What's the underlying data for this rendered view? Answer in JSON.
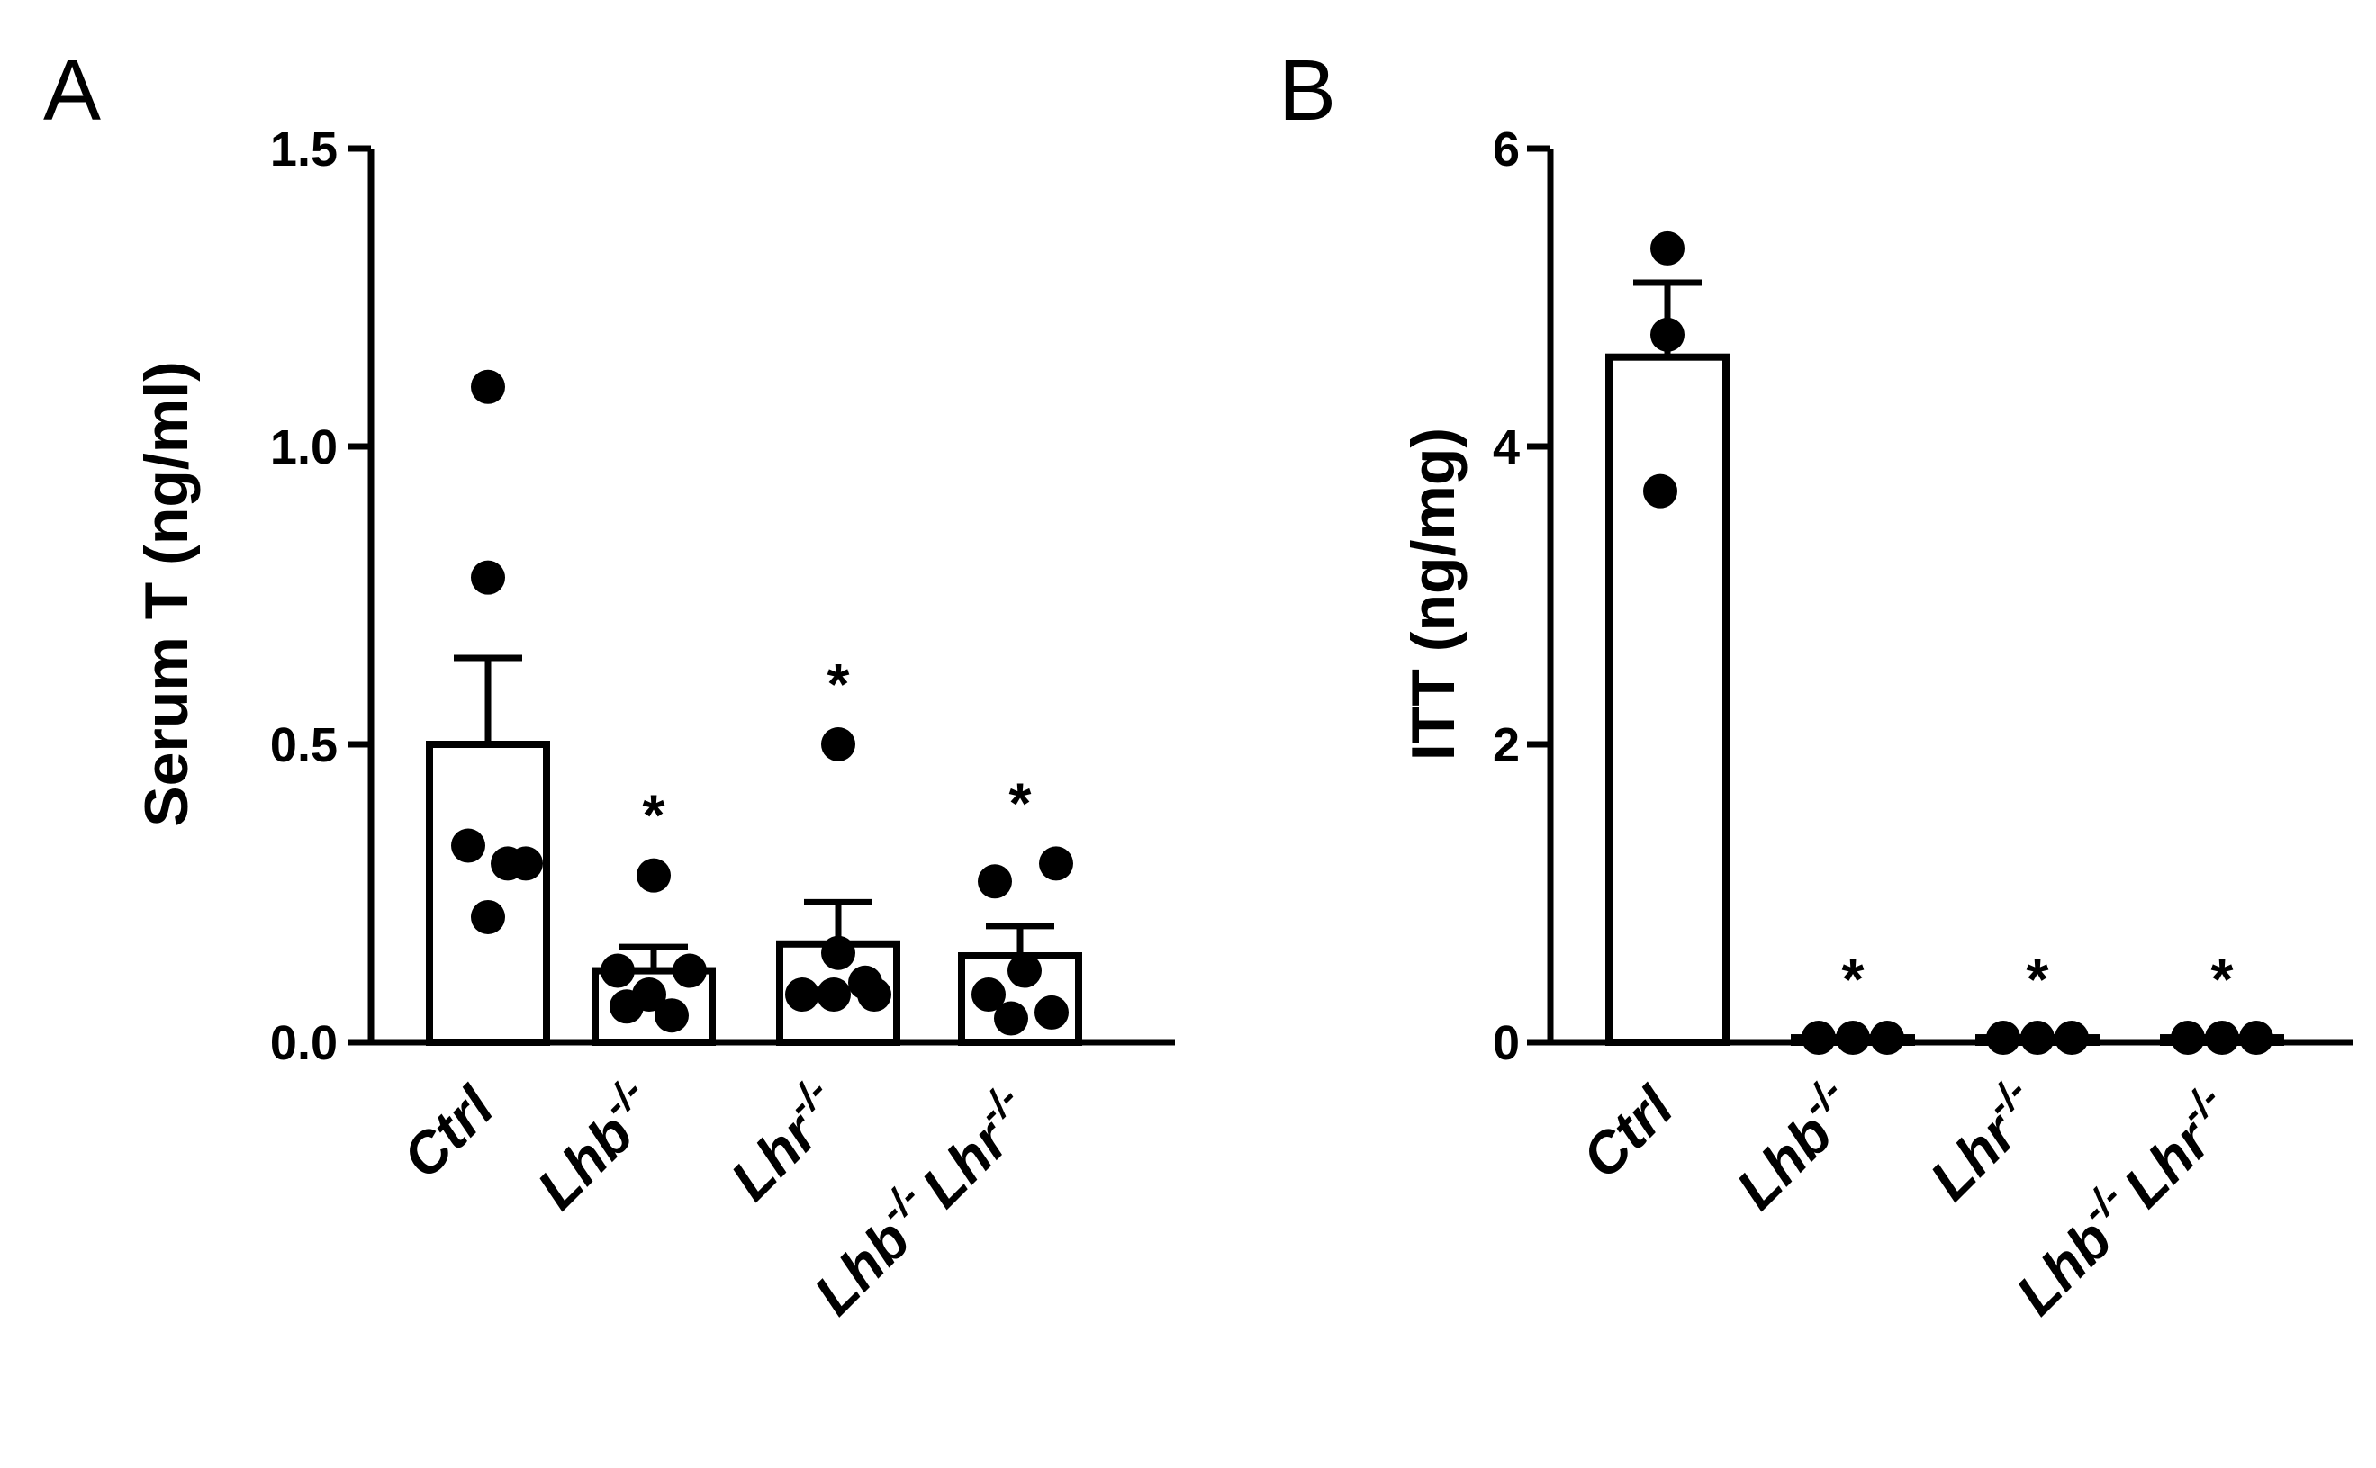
{
  "chart_data": [
    {
      "type": "bar",
      "panel": "A",
      "ylabel": "Serum T (ng/ml)",
      "ylim": [
        0,
        1.5
      ],
      "yticks": [
        "0.0",
        "0.5",
        "1.0",
        "1.5"
      ],
      "ytick_values": [
        0,
        0.5,
        1.0,
        1.5
      ],
      "categories": [
        {
          "main": "Ctrl",
          "sup": ""
        },
        {
          "main": "Lhb",
          "sup": "-/-"
        },
        {
          "main": "Lhr",
          "sup": "-/-"
        },
        {
          "main": "Lhb",
          "sup": "-/-",
          "main2": "Lhr",
          "sup2": "-/-"
        }
      ],
      "values": [
        0.5,
        0.12,
        0.165,
        0.145
      ],
      "errors": [
        0.145,
        0.04,
        0.07,
        0.05
      ],
      "points": [
        [
          1.1,
          0.78,
          0.33,
          0.3,
          0.3,
          0.21
        ],
        [
          0.28,
          0.12,
          0.12,
          0.08,
          0.06,
          0.045
        ],
        [
          0.5,
          0.15,
          0.1,
          0.08,
          0.08,
          0.08
        ],
        [
          0.27,
          0.3,
          0.12,
          0.08,
          0.05,
          0.04
        ]
      ],
      "significance": [
        "",
        "*",
        "*",
        "*"
      ]
    },
    {
      "type": "bar",
      "panel": "B",
      "ylabel": "ITT (ng/mg)",
      "ylim": [
        0,
        6
      ],
      "yticks": [
        "0",
        "2",
        "4",
        "6"
      ],
      "ytick_values": [
        0,
        2,
        4,
        6
      ],
      "categories": [
        {
          "main": "Ctrl",
          "sup": ""
        },
        {
          "main": "Lhb",
          "sup": "-/-"
        },
        {
          "main": "Lhr",
          "sup": "-/-"
        },
        {
          "main": "Lhb",
          "sup": "-/-",
          "main2": "Lhr",
          "sup2": "-/-"
        }
      ],
      "values": [
        4.6,
        0.03,
        0.03,
        0.03
      ],
      "errors": [
        0.5,
        0,
        0,
        0
      ],
      "points": [
        [
          5.33,
          4.75,
          3.7
        ],
        [
          0.03,
          0.03,
          0.03
        ],
        [
          0.03,
          0.03,
          0.03
        ],
        [
          0.03,
          0.03,
          0.03
        ]
      ],
      "significance": [
        "",
        "*",
        "*",
        "*"
      ]
    }
  ]
}
